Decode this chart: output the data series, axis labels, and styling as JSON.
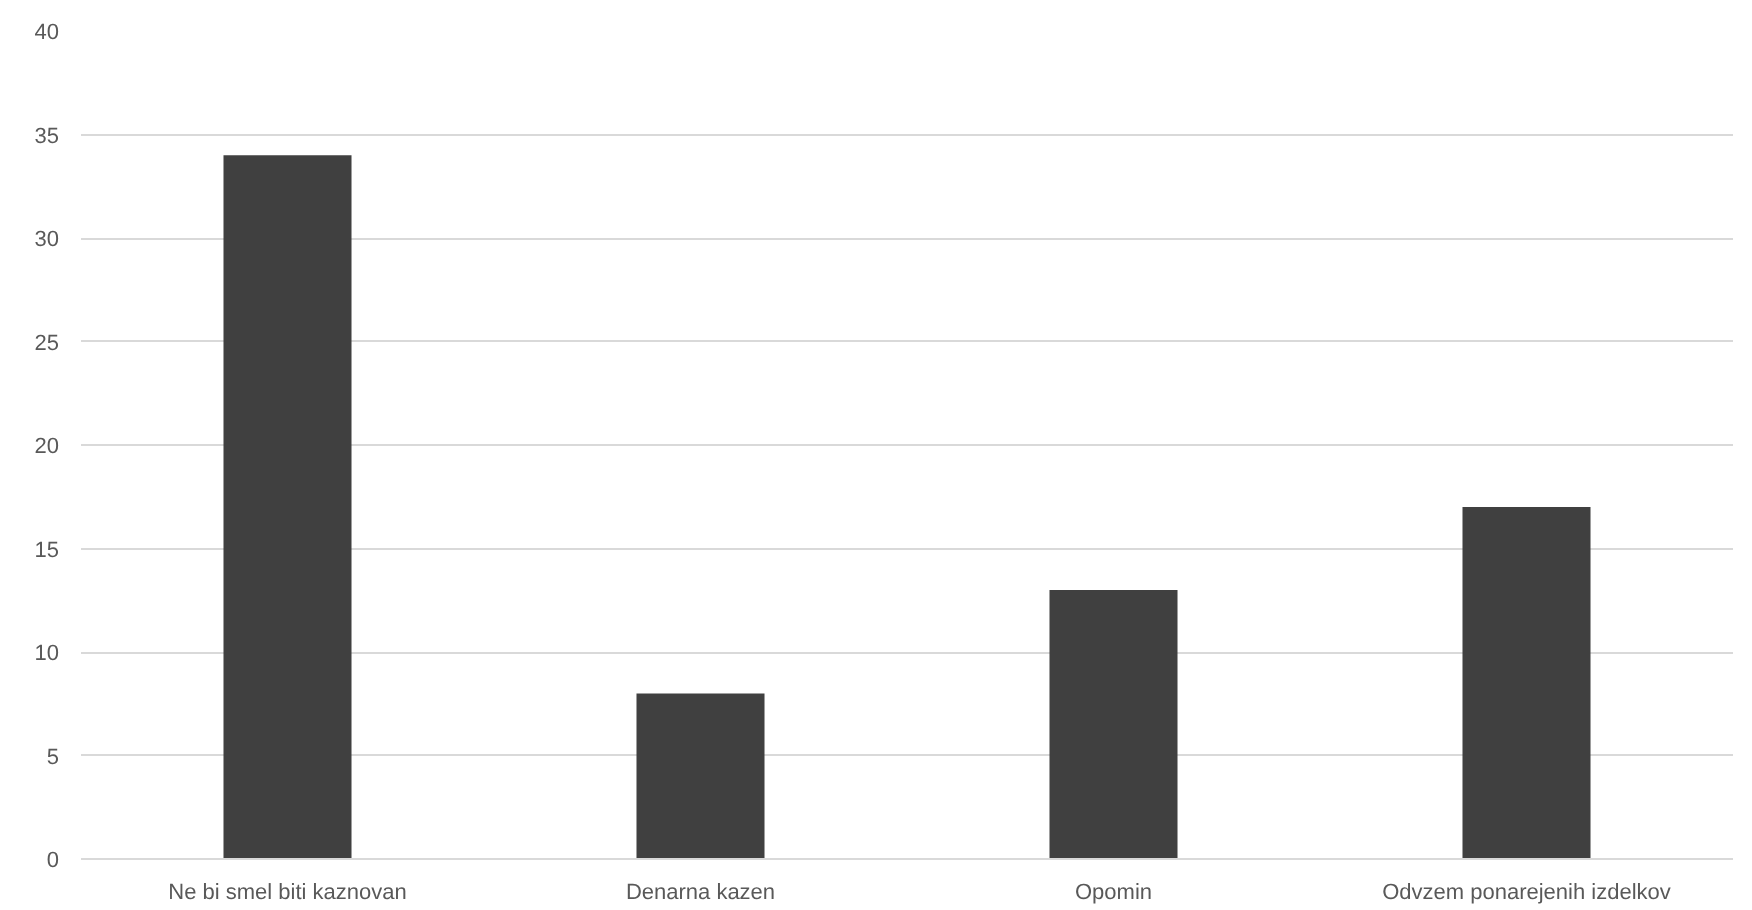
{
  "chart_data": {
    "type": "bar",
    "categories": [
      "Ne bi smel biti kaznovan",
      "Denarna kazen",
      "Opomin",
      "Odvzem ponarejenih izdelkov"
    ],
    "values": [
      34,
      8,
      13,
      17
    ],
    "color": "#404040",
    "ylim": [
      0,
      40
    ],
    "yticks": [
      0,
      5,
      10,
      15,
      20,
      25,
      30,
      35,
      40
    ],
    "grid": "y"
  }
}
